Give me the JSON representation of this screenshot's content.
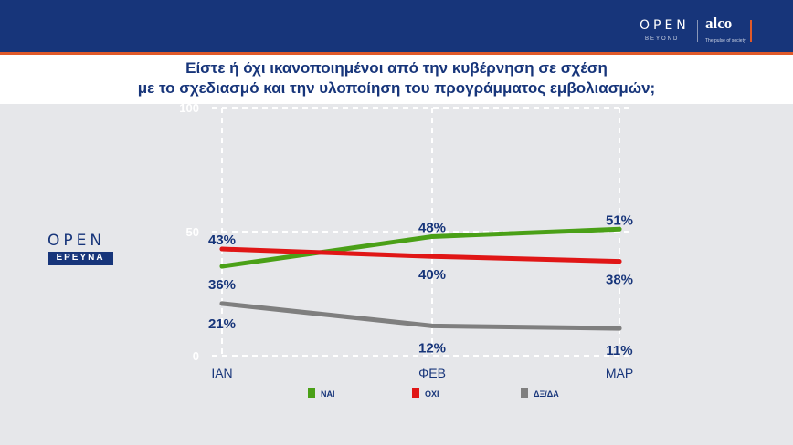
{
  "header": {
    "brand_left": "OPEN",
    "brand_left_sub": "BEYOND",
    "brand_right": "alco",
    "brand_right_sub": "The pulse of society"
  },
  "title_line1": "Είστε ή όχι ικανοποιημένοι από την κυβέρνηση σε σχέση",
  "title_line2": "με το σχεδιασμό και την υλοποίηση του προγράμματος εμβολιασμών;",
  "side_logo": {
    "word": "OPEN",
    "sub": "ΕΡΕΥΝΑ"
  },
  "chart_data": {
    "type": "line",
    "categories": [
      "ΙΑΝ",
      "ΦΕΒ",
      "ΜΑΡ"
    ],
    "ylim": [
      0,
      100
    ],
    "yticks": [
      "0",
      "50",
      "100"
    ],
    "grid": true,
    "legend_position": "bottom",
    "series": [
      {
        "name": "ΝΑΙ",
        "color": "#4aa017",
        "values": [
          36,
          48,
          51
        ],
        "labels": [
          "36%",
          "48%",
          "51%"
        ]
      },
      {
        "name": "ΟΧΙ",
        "color": "#e01616",
        "values": [
          43,
          40,
          38
        ],
        "labels": [
          "43%",
          "40%",
          "38%"
        ]
      },
      {
        "name": "ΔΞ/ΔΑ",
        "color": "#7f7f7f",
        "values": [
          21,
          12,
          11
        ],
        "labels": [
          "21%",
          "12%",
          "11%"
        ]
      }
    ]
  }
}
